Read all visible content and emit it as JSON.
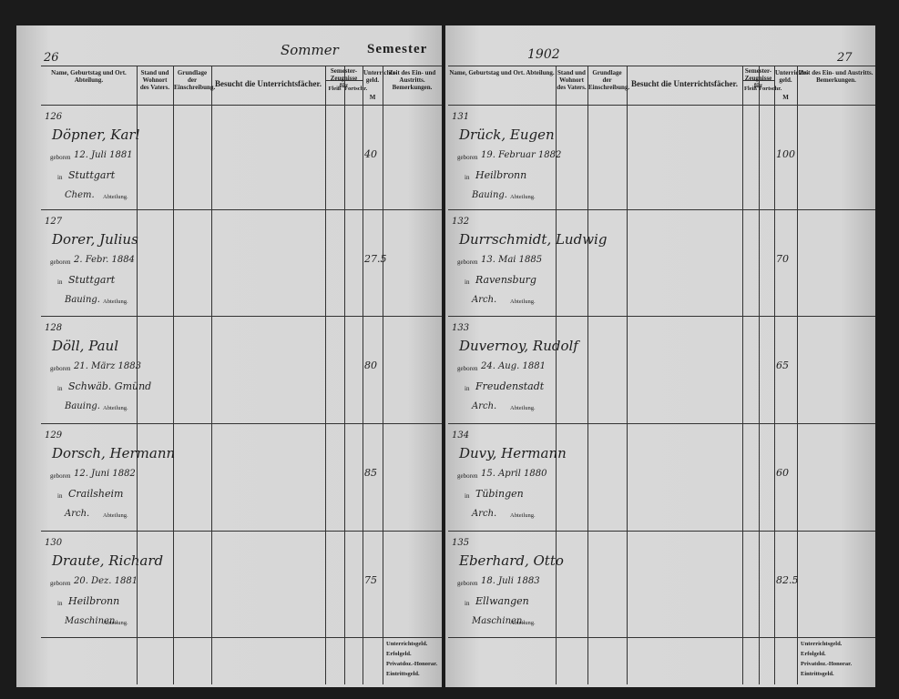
{
  "header": {
    "left_page_number": "26",
    "season": "Sommer",
    "title": "Semester",
    "year": "1902",
    "right_page_number": "27"
  },
  "columns": [
    "Name, Geburtstag und Ort. Abteilung.",
    "Stand und Wohnort des Vaters.",
    "Grundlage der Einschreibung.",
    "Besucht die Unterrichtsfächer.",
    "Semester-Zeugnisse für",
    "Unterrichts-geld.",
    "Zeit des Ein- und Austritts. Bemerkungen."
  ],
  "subcolumns": [
    "Fleiß",
    "Fortschr."
  ],
  "currency": "M",
  "labels": {
    "born": "geboren",
    "in": "in",
    "department": "Abteilung."
  },
  "left_rows": [
    {
      "number": "126",
      "name": "Döpner, Karl",
      "born_date": "12. Juli 1881",
      "born_place": "Stuttgart",
      "department": "Chem.",
      "fee": "40"
    },
    {
      "number": "127",
      "name": "Dorer, Julius",
      "born_date": "2. Febr. 1884",
      "born_place": "Stuttgart",
      "department": "Bauing.",
      "fee": "27.5"
    },
    {
      "number": "128",
      "name": "Döll, Paul",
      "born_date": "21. März 1883",
      "born_place": "Schwäb. Gmünd",
      "department": "Bauing.",
      "fee": "80"
    },
    {
      "number": "129",
      "name": "Dorsch, Hermann",
      "born_date": "12. Juni 1882",
      "born_place": "Crailsheim",
      "department": "Arch.",
      "fee": "85"
    },
    {
      "number": "130",
      "name": "Draute, Richard",
      "born_date": "20. Dez. 1881",
      "born_place": "Heilbronn",
      "department": "Maschinen.",
      "fee": "75"
    }
  ],
  "right_rows": [
    {
      "number": "131",
      "name": "Drück, Eugen",
      "born_date": "19. Februar 1882",
      "born_place": "Heilbronn",
      "department": "Bauing.",
      "fee": "100"
    },
    {
      "number": "132",
      "name": "Durrschmidt, Ludwig",
      "born_date": "13. Mai 1885",
      "born_place": "Ravensburg",
      "department": "Arch.",
      "fee": "70"
    },
    {
      "number": "133",
      "name": "Duvernoy, Rudolf",
      "born_date": "24. Aug. 1881",
      "born_place": "Freudenstadt",
      "department": "Arch.",
      "fee": "65"
    },
    {
      "number": "134",
      "name": "Duvy, Hermann",
      "born_date": "15. April 1880",
      "born_place": "Tübingen",
      "department": "Arch.",
      "fee": "60"
    },
    {
      "number": "135",
      "name": "Eberhard, Otto",
      "born_date": "18. Juli 1883",
      "born_place": "Ellwangen",
      "department": "Maschinen.",
      "fee": "82.5"
    }
  ],
  "footer": [
    "Unterrichtsgeld.",
    "Erfolgeld.",
    "Privatdoz.-Honorar.",
    "Eintrittsgeld."
  ]
}
